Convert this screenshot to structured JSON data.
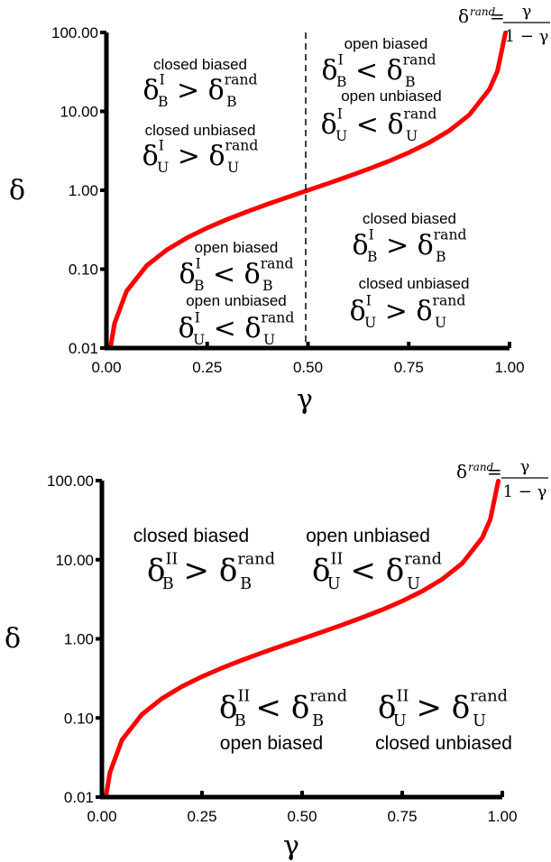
{
  "chart_data": [
    {
      "type": "line",
      "xlabel": "γ",
      "ylabel": "δ",
      "xlim": [
        0,
        1
      ],
      "ylim": [
        0.01,
        100
      ],
      "yscale": "log",
      "x_ticks": [
        "0.00",
        "0.25",
        "0.50",
        "0.75",
        "1.00"
      ],
      "y_ticks": [
        "0.01",
        "0.10",
        "1.00",
        "10.00",
        "100.00"
      ],
      "grid": false,
      "series": [
        {
          "color": "#ff0000",
          "x": [
            0.01,
            0.02,
            0.05,
            0.1,
            0.15,
            0.2,
            0.25,
            0.3,
            0.35,
            0.4,
            0.45,
            0.5,
            0.55,
            0.6,
            0.65,
            0.7,
            0.75,
            0.8,
            0.85,
            0.9,
            0.95,
            0.97,
            0.99
          ],
          "y": [
            0.0101,
            0.0204,
            0.0526,
            0.111,
            0.176,
            0.25,
            0.333,
            0.429,
            0.538,
            0.667,
            0.818,
            1.0,
            1.22,
            1.5,
            1.86,
            2.33,
            3.0,
            4.0,
            5.67,
            9.0,
            19.0,
            32.3,
            99.0
          ]
        }
      ],
      "vline": {
        "x": 0.5,
        "style": "dashed"
      },
      "formula": {
        "lhs": "δ",
        "lhs_sup": "rand",
        "eq": "=",
        "num": "γ",
        "den": "1 − γ"
      },
      "regions": [
        {
          "name": "closed  biased",
          "math": {
            "sym": "δ",
            "sub": "B",
            "sup": "I",
            "op": ">",
            "rsym": "δ",
            "rsub": "B",
            "rsup": "rand"
          }
        },
        {
          "name": "closed unbiased",
          "math": {
            "sym": "δ",
            "sub": "U",
            "sup": "I",
            "op": ">",
            "rsym": "δ",
            "rsub": "U",
            "rsup": "rand"
          }
        },
        {
          "name": "open biased",
          "math": {
            "sym": "δ",
            "sub": "B",
            "sup": "I",
            "op": "<",
            "rsym": "δ",
            "rsub": "B",
            "rsup": "rand"
          }
        },
        {
          "name": "open unbiased",
          "math": {
            "sym": "δ",
            "sub": "U",
            "sup": "I",
            "op": "<",
            "rsym": "δ",
            "rsub": "U",
            "rsup": "rand"
          }
        },
        {
          "name": "closed  biased",
          "math": {
            "sym": "δ",
            "sub": "B",
            "sup": "I",
            "op": ">",
            "rsym": "δ",
            "rsub": "B",
            "rsup": "rand"
          }
        },
        {
          "name": "closed unbiased",
          "math": {
            "sym": "δ",
            "sub": "U",
            "sup": "I",
            "op": ">",
            "rsym": "δ",
            "rsub": "U",
            "rsup": "rand"
          }
        },
        {
          "name": "open biased",
          "math": {
            "sym": "δ",
            "sub": "B",
            "sup": "I",
            "op": "<",
            "rsym": "δ",
            "rsub": "B",
            "rsup": "rand"
          }
        },
        {
          "name": "open unbiased",
          "math": {
            "sym": "δ",
            "sub": "U",
            "sup": "I",
            "op": "<",
            "rsym": "δ",
            "rsub": "U",
            "rsup": "rand"
          }
        }
      ]
    },
    {
      "type": "line",
      "xlabel": "γ",
      "ylabel": "δ",
      "xlim": [
        0,
        1
      ],
      "ylim": [
        0.01,
        100
      ],
      "yscale": "log",
      "x_ticks": [
        "0.00",
        "0.25",
        "0.50",
        "0.75",
        "1.00"
      ],
      "y_ticks": [
        "0.01",
        "0.10",
        "1.00",
        "10.00",
        "100.00"
      ],
      "grid": false,
      "series": [
        {
          "color": "#ff0000",
          "x": [
            0.01,
            0.02,
            0.05,
            0.1,
            0.15,
            0.2,
            0.25,
            0.3,
            0.35,
            0.4,
            0.45,
            0.5,
            0.55,
            0.6,
            0.65,
            0.7,
            0.75,
            0.8,
            0.85,
            0.9,
            0.95,
            0.97,
            0.99
          ],
          "y": [
            0.0101,
            0.0204,
            0.0526,
            0.111,
            0.176,
            0.25,
            0.333,
            0.429,
            0.538,
            0.667,
            0.818,
            1.0,
            1.22,
            1.5,
            1.86,
            2.33,
            3.0,
            4.0,
            5.67,
            9.0,
            19.0,
            32.3,
            99.0
          ]
        }
      ],
      "formula": {
        "lhs": "δ",
        "lhs_sup": "rand",
        "eq": "=",
        "num": "γ",
        "den": "1 − γ"
      },
      "regions": [
        {
          "name": "closed  biased",
          "math": {
            "sym": "δ",
            "sub": "B",
            "sup": "II",
            "op": ">",
            "rsym": "δ",
            "rsub": "B",
            "rsup": "rand"
          }
        },
        {
          "name": "open unbiased",
          "math": {
            "sym": "δ",
            "sub": "U",
            "sup": "II",
            "op": "<",
            "rsym": "δ",
            "rsub": "U",
            "rsup": "rand"
          }
        },
        {
          "name": "open  biased",
          "math": {
            "sym": "δ",
            "sub": "B",
            "sup": "II",
            "op": "<",
            "rsym": "δ",
            "rsub": "B",
            "rsup": "rand"
          }
        },
        {
          "name": "closed unbiased",
          "math": {
            "sym": "δ",
            "sub": "U",
            "sup": "II",
            "op": ">",
            "rsym": "δ",
            "rsub": "U",
            "rsup": "rand"
          }
        }
      ]
    }
  ]
}
